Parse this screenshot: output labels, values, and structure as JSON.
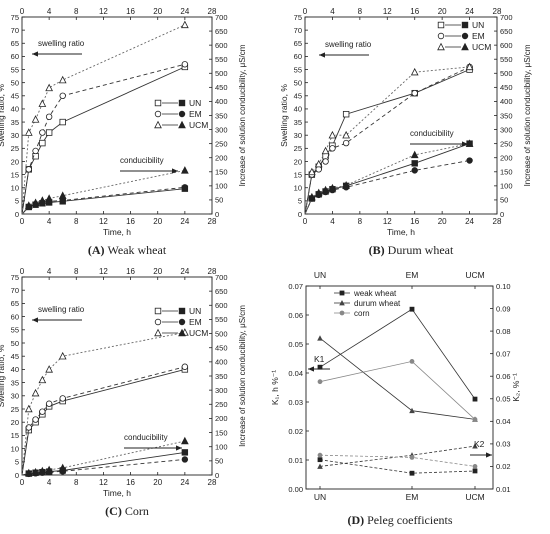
{
  "panels": [
    {
      "caption": "(A) Weak wheat",
      "caption_letter": "(A)",
      "caption_text": "Weak wheat",
      "chart_data": {
        "type": "line",
        "xlabel": "Time, h",
        "ylabel": "Swelling ratio, %",
        "y2label": "Increase of solution conducibility, μS/cm",
        "xlim": [
          0,
          28
        ],
        "xticks": [
          "0",
          "4",
          "8",
          "12",
          "16",
          "20",
          "24",
          "28"
        ],
        "ylim": [
          0,
          75
        ],
        "yticks": [
          "0",
          "5",
          "10",
          "15",
          "20",
          "25",
          "30",
          "35",
          "40",
          "45",
          "50",
          "55",
          "60",
          "65",
          "70",
          "75"
        ],
        "y2lim": [
          0,
          700
        ],
        "y2ticks": [
          "0",
          "50",
          "100",
          "150",
          "200",
          "250",
          "300",
          "350",
          "400",
          "450",
          "500",
          "550",
          "600",
          "650",
          "700"
        ],
        "legend": [
          "UN",
          "EM",
          "UCM"
        ],
        "annotations": [
          "swelling ratio",
          "conducibility"
        ],
        "x": [
          0,
          1,
          2,
          3,
          4,
          6,
          24
        ],
        "series": [
          {
            "name": "UN",
            "axis": "left",
            "values": [
              0,
              17,
              22,
              27,
              31,
              35,
              56
            ]
          },
          {
            "name": "EM",
            "axis": "left",
            "values": [
              0,
              17,
              24,
              31,
              37,
              45,
              57
            ]
          },
          {
            "name": "UCM",
            "axis": "left",
            "values": [
              0,
              31,
              36,
              42,
              48,
              51,
              72
            ]
          },
          {
            "name": "UN",
            "axis": "right",
            "values": [
              0,
              25,
              33,
              38,
              41,
              45,
              90
            ]
          },
          {
            "name": "EM",
            "axis": "right",
            "values": [
              0,
              26,
              35,
              40,
              45,
              48,
              95
            ]
          },
          {
            "name": "UCM",
            "axis": "right",
            "values": [
              0,
              30,
              40,
              48,
              55,
              65,
              155
            ]
          }
        ]
      }
    },
    {
      "caption": "(B) Durum wheat",
      "caption_letter": "(B)",
      "caption_text": "Durum wheat",
      "chart_data": {
        "type": "line",
        "xlabel": "Time, h",
        "ylabel": "Swelling ratio, %",
        "y2label": "Increase of solution conducibility, μS/cm",
        "xlim": [
          0,
          28
        ],
        "xticks": [
          "0",
          "4",
          "8",
          "12",
          "16",
          "20",
          "24",
          "28"
        ],
        "ylim": [
          0,
          75
        ],
        "yticks": [
          "0",
          "5",
          "10",
          "15",
          "20",
          "25",
          "30",
          "35",
          "40",
          "45",
          "50",
          "55",
          "60",
          "65",
          "70",
          "75"
        ],
        "y2lim": [
          0,
          700
        ],
        "y2ticks": [
          "0",
          "50",
          "100",
          "150",
          "200",
          "250",
          "300",
          "350",
          "400",
          "450",
          "500",
          "550",
          "600",
          "650",
          "700"
        ],
        "legend": [
          "UN",
          "EM",
          "UCM"
        ],
        "annotations": [
          "swelling ratio",
          "conducibility"
        ],
        "x": [
          0,
          1,
          2,
          3,
          4,
          6,
          16,
          24
        ],
        "series": [
          {
            "name": "UN",
            "axis": "left",
            "values": [
              0,
              15,
              18,
              22,
              26,
              38,
              46,
              55
            ]
          },
          {
            "name": "EM",
            "axis": "left",
            "values": [
              0,
              15,
              17,
              20,
              25,
              27,
              46,
              56
            ]
          },
          {
            "name": "UCM",
            "axis": "left",
            "values": [
              0,
              16,
              19,
              24,
              30,
              30,
              54,
              56
            ]
          },
          {
            "name": "UN",
            "axis": "right",
            "values": [
              0,
              55,
              70,
              80,
              88,
              100,
              180,
              250
            ]
          },
          {
            "name": "EM",
            "axis": "right",
            "values": [
              0,
              55,
              68,
              78,
              85,
              95,
              155,
              190
            ]
          },
          {
            "name": "UCM",
            "axis": "right",
            "values": [
              0,
              60,
              75,
              85,
              92,
              102,
              210,
              250
            ]
          }
        ]
      }
    },
    {
      "caption": "(C) Corn",
      "caption_letter": "(C)",
      "caption_text": "Corn",
      "chart_data": {
        "type": "line",
        "xlabel": "Time, h",
        "ylabel": "Swelling ratio, %",
        "y2label": "Increase of solution conducibility, μS/cm",
        "xlim": [
          0,
          28
        ],
        "xticks": [
          "0",
          "4",
          "8",
          "12",
          "16",
          "20",
          "24",
          "28"
        ],
        "ylim": [
          0,
          75
        ],
        "yticks": [
          "0",
          "5",
          "10",
          "15",
          "20",
          "25",
          "30",
          "35",
          "40",
          "45",
          "50",
          "55",
          "60",
          "65",
          "70",
          "75"
        ],
        "y2lim": [
          0,
          700
        ],
        "y2ticks": [
          "0",
          "50",
          "100",
          "150",
          "200",
          "250",
          "300",
          "350",
          "400",
          "450",
          "500",
          "550",
          "600",
          "650",
          "700"
        ],
        "legend": [
          "UN",
          "EM",
          "UCM"
        ],
        "annotations": [
          "swelling ratio",
          "conducibility"
        ],
        "x": [
          0,
          1,
          2,
          3,
          4,
          6,
          24
        ],
        "series": [
          {
            "name": "UN",
            "axis": "left",
            "values": [
              0,
              17,
              20,
              23,
              26,
              28,
              40
            ]
          },
          {
            "name": "EM",
            "axis": "left",
            "values": [
              0,
              18,
              21,
              24,
              27,
              29,
              41
            ]
          },
          {
            "name": "UCM",
            "axis": "left",
            "values": [
              0,
              25,
              31,
              36,
              40,
              45,
              54
            ]
          },
          {
            "name": "UN",
            "axis": "right",
            "values": [
              0,
              5,
              8,
              10,
              12,
              16,
              80
            ]
          },
          {
            "name": "EM",
            "axis": "right",
            "values": [
              0,
              4,
              6,
              8,
              10,
              13,
              55
            ]
          },
          {
            "name": "UCM",
            "axis": "right",
            "values": [
              0,
              7,
              10,
              14,
              18,
              25,
              120
            ]
          }
        ]
      }
    },
    {
      "caption": "(D) Peleg coefficients",
      "caption_letter": "(D)",
      "caption_text": "Peleg coefficients",
      "chart_data": {
        "type": "line",
        "categories": [
          "UN",
          "EM",
          "UCM"
        ],
        "ylabel": "K₁, h %⁻¹",
        "y2label": "K₂, %⁻¹",
        "ylim": [
          0,
          0.07
        ],
        "yticks": [
          "0.00",
          "0.01",
          "0.02",
          "0.03",
          "0.04",
          "0.05",
          "0.06",
          "0.07"
        ],
        "y2lim": [
          0.01,
          0.1
        ],
        "y2ticks": [
          "0.01",
          "0.02",
          "0.03",
          "0.04",
          "0.05",
          "0.06",
          "0.07",
          "0.08",
          "0.09",
          "0.10"
        ],
        "legend": [
          "weak wheat",
          "durum wheat",
          "corn"
        ],
        "annotations": [
          "K1",
          "K2"
        ],
        "series": [
          {
            "name": "weak wheat",
            "axis": "left",
            "values": [
              0.042,
              0.062,
              0.031
            ]
          },
          {
            "name": "durum wheat",
            "axis": "left",
            "values": [
              0.052,
              0.027,
              0.024
            ]
          },
          {
            "name": "corn",
            "axis": "left",
            "values": [
              0.037,
              0.044,
              0.024
            ]
          },
          {
            "name": "weak wheat",
            "axis": "right",
            "values": [
              0.023,
              0.017,
              0.018
            ]
          },
          {
            "name": "durum wheat",
            "axis": "right",
            "values": [
              0.02,
              0.025,
              0.029
            ]
          },
          {
            "name": "corn",
            "axis": "right",
            "values": [
              0.025,
              0.024,
              0.02
            ]
          }
        ]
      }
    }
  ]
}
